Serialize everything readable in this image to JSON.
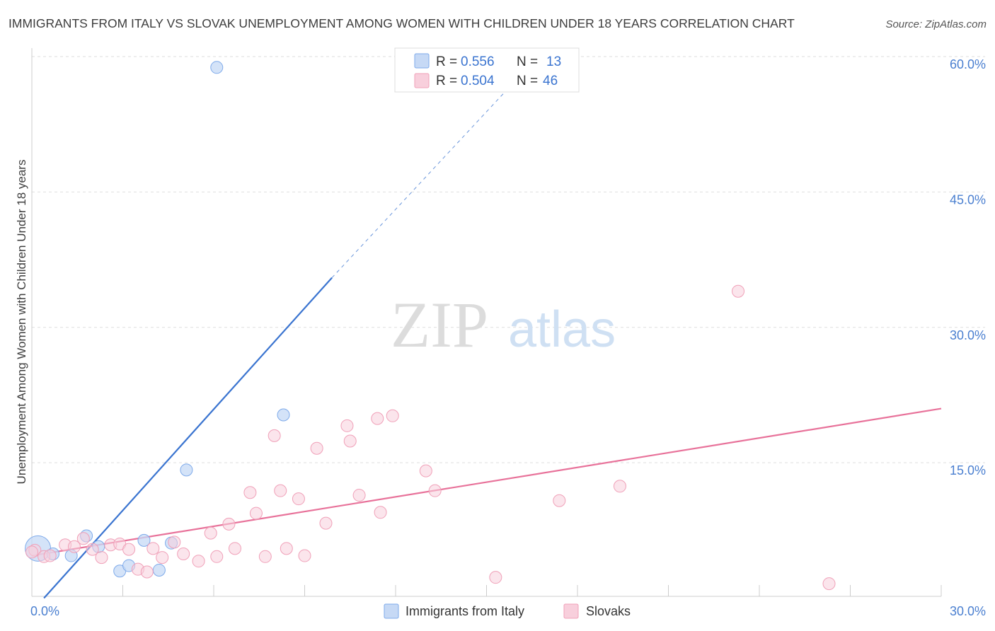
{
  "chart_data": {
    "type": "scatter",
    "title": "IMMIGRANTS FROM ITALY VS SLOVAK UNEMPLOYMENT AMONG WOMEN WITH CHILDREN UNDER 18 YEARS CORRELATION CHART",
    "source": "Source: ZipAtlas.com",
    "ylabel": "Unemployment Among Women with Children Under 18 years",
    "xlabel": "",
    "xlim": [
      0,
      30
    ],
    "ylim": [
      0,
      62
    ],
    "x_ticks": [
      {
        "value": 0,
        "label": "0.0%"
      },
      {
        "value": 30,
        "label": "30.0%"
      }
    ],
    "y_ticks": [
      {
        "value": 15,
        "label": "15.0%"
      },
      {
        "value": 30,
        "label": "30.0%"
      },
      {
        "value": 45,
        "label": "45.0%"
      },
      {
        "value": 60,
        "label": "60.0%"
      }
    ],
    "grid": true,
    "legend_position": "top-center",
    "watermark": {
      "zip": "ZIP",
      "atlas": "atlas"
    },
    "series": [
      {
        "name": "Immigrants from Italy",
        "color": "#7eaaea",
        "fill": "#c6d9f5",
        "line_color": "#3a74d0",
        "R": "0.556",
        "N": "13",
        "trend": {
          "x0": 0.4,
          "y0": 0.0,
          "x1": 9.9,
          "y1": 35.5,
          "dash_to_x": 16.0,
          "dash_to_y": 57.5
        },
        "points": [
          [
            0.2,
            5.5
          ],
          [
            0.7,
            4.9
          ],
          [
            1.3,
            4.7
          ],
          [
            1.8,
            6.9
          ],
          [
            2.2,
            5.7
          ],
          [
            2.9,
            3.0
          ],
          [
            3.2,
            3.6
          ],
          [
            3.7,
            6.4
          ],
          [
            4.2,
            3.1
          ],
          [
            4.6,
            6.1
          ],
          [
            5.1,
            14.2
          ],
          [
            6.1,
            58.8
          ],
          [
            8.3,
            20.3
          ]
        ]
      },
      {
        "name": "Slovaks",
        "color": "#f0a0b8",
        "fill": "#f8cfdc",
        "line_color": "#e8729a",
        "R": "0.504",
        "N": "46",
        "trend": {
          "x0": 0.0,
          "y0": 4.7,
          "x1": 30.0,
          "y1": 21.0
        },
        "points": [
          [
            0.1,
            5.3
          ],
          [
            0.4,
            4.6
          ],
          [
            0.6,
            4.7
          ],
          [
            1.1,
            5.9
          ],
          [
            1.4,
            5.7
          ],
          [
            1.7,
            6.6
          ],
          [
            2.0,
            5.4
          ],
          [
            2.3,
            4.5
          ],
          [
            2.6,
            5.9
          ],
          [
            2.9,
            6.0
          ],
          [
            3.2,
            5.4
          ],
          [
            3.5,
            3.2
          ],
          [
            3.8,
            2.9
          ],
          [
            4.0,
            5.5
          ],
          [
            4.3,
            4.5
          ],
          [
            4.7,
            6.2
          ],
          [
            5.0,
            4.9
          ],
          [
            5.5,
            4.1
          ],
          [
            5.9,
            7.2
          ],
          [
            6.1,
            4.6
          ],
          [
            6.5,
            8.2
          ],
          [
            6.7,
            5.5
          ],
          [
            7.2,
            11.7
          ],
          [
            7.4,
            9.4
          ],
          [
            7.7,
            4.6
          ],
          [
            8.0,
            18.0
          ],
          [
            8.2,
            11.9
          ],
          [
            8.4,
            5.5
          ],
          [
            8.8,
            11.0
          ],
          [
            9.0,
            4.7
          ],
          [
            9.4,
            16.6
          ],
          [
            9.7,
            8.3
          ],
          [
            10.4,
            19.1
          ],
          [
            10.5,
            17.4
          ],
          [
            10.8,
            11.4
          ],
          [
            11.4,
            19.9
          ],
          [
            11.5,
            9.5
          ],
          [
            11.9,
            20.2
          ],
          [
            13.0,
            14.1
          ],
          [
            13.3,
            11.9
          ],
          [
            15.3,
            2.3
          ],
          [
            17.4,
            10.8
          ],
          [
            19.4,
            12.4
          ],
          [
            23.3,
            34.0
          ],
          [
            26.3,
            1.6
          ],
          [
            0.0,
            5.1
          ]
        ]
      }
    ]
  }
}
